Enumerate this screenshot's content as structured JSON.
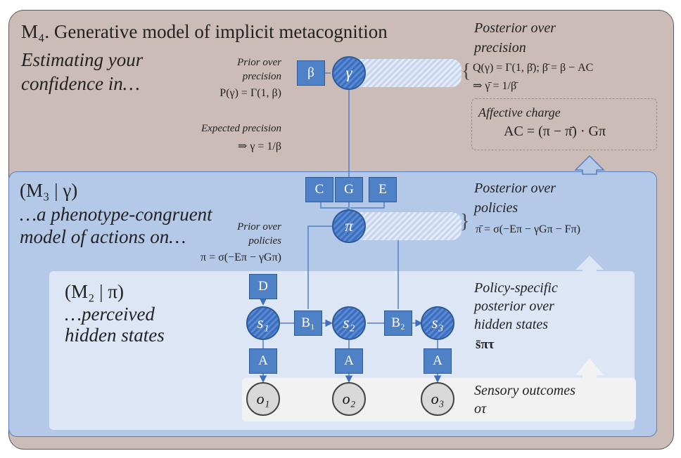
{
  "m4": {
    "title": "M₄. Generative model of implicit metacognition",
    "subtitle_1": "Estimating your",
    "subtitle_2": "confidence in…",
    "prior_label_1": "Prior over",
    "prior_label_2": "precision",
    "prior_eq": "P(γ) = Γ(1, β)",
    "expected_label": "Expected precision",
    "expected_eq": "⇒ γ = 1/β",
    "posterior_label_1": "Posterior over",
    "posterior_label_2": "precision",
    "posterior_eq_1": "Q(γ) = Γ(1, β̄); β̄ = β − AC",
    "posterior_eq_2": "⇒ γ̄ = 1/β̄",
    "affective_label": "Affective charge",
    "affective_eq": "AC = (π − π̄) · Gπ"
  },
  "m3": {
    "title": "(M₃ | γ)",
    "subtitle_1": "…a phenotype-congruent",
    "subtitle_2": "model of actions on…",
    "prior_label_1": "Prior over",
    "prior_label_2": "policies",
    "prior_eq": "π = σ(−Eπ − γGπ)",
    "posterior_label_1": "Posterior over",
    "posterior_label_2": "policies",
    "posterior_eq": "π̄ = σ(−Eπ − γGπ − Fπ)"
  },
  "m2": {
    "title": "(M₂ | π)",
    "subtitle_1": "…perceived",
    "subtitle_2": "hidden states",
    "posterior_label_1": "Policy-specific",
    "posterior_label_2": "posterior over",
    "posterior_label_3": "hidden states",
    "posterior_eq": "s̄πτ",
    "sensory_label": "Sensory outcomes",
    "sensory_eq": "oτ"
  },
  "nodes": {
    "beta": "β",
    "gamma": "γ",
    "c": "C",
    "g": "G",
    "e": "E",
    "pi": "π",
    "d": "D",
    "s1": "s₁",
    "s2": "s₂",
    "s3": "s₃",
    "b1": "B₁",
    "b2": "B₂",
    "a1": "A",
    "a2": "A",
    "a3": "A",
    "o1": "o₁",
    "o2": "o₂",
    "o3": "o₃"
  },
  "colors": {
    "outer": "#cbbcb8",
    "m3": "#b4c8e8",
    "m2": "#dde6f4",
    "node": "#4f81c7"
  }
}
